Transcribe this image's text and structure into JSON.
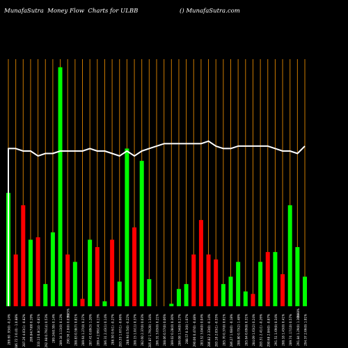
{
  "header": {
    "title_left": "MunafaSutra  Money Flow  Charts for ULBB",
    "title_right": "() MunafaSutra.com"
  },
  "colors": {
    "background": "#000000",
    "up_bar": "#00ff00",
    "down_bar": "#ff0000",
    "line": "#ffffff",
    "grid": "#cc7a00"
  },
  "chart_data": {
    "type": "bar",
    "bar_values": [
      46,
      21,
      41,
      27,
      28,
      9,
      30,
      97,
      21,
      18,
      3,
      27,
      24,
      2,
      27,
      10,
      64,
      32,
      59,
      11,
      0,
      0,
      1,
      7,
      9,
      21,
      35,
      21,
      19,
      9,
      12,
      18,
      6,
      5,
      18,
      22,
      22,
      13,
      41,
      24,
      12
    ],
    "bar_directions": [
      "up",
      "down",
      "down",
      "up",
      "down",
      "up",
      "up",
      "up",
      "down",
      "up",
      "down",
      "up",
      "down",
      "up",
      "down",
      "up",
      "up",
      "down",
      "up",
      "up",
      "up",
      "down",
      "up",
      "up",
      "up",
      "down",
      "down",
      "down",
      "down",
      "up",
      "up",
      "up",
      "up",
      "down",
      "up",
      "down",
      "up",
      "down",
      "up",
      "up",
      "up"
    ],
    "line_values": [
      64,
      64,
      63,
      63,
      61,
      62,
      62,
      63,
      63,
      63,
      63,
      64,
      63,
      63,
      62,
      61,
      63,
      61,
      63,
      64,
      65,
      66,
      66,
      66,
      66,
      66,
      66,
      67,
      65,
      64,
      64,
      65,
      65,
      65,
      65,
      65,
      64,
      63,
      63,
      62,
      65
    ],
    "ylim": [
      0,
      100
    ],
    "x_labels": [
      "289.60 .93(0) -0.24%",
      "286.72 3 0.(0) -1.0.88%",
      "287.26 4.03(1) -0.82%",
      "289.84(7)80 0.19%",
      "333.13 0.8(14) -0.81%",
      "292.98 0.79(14) 0.53%",
      "289.24(0.59) 0.14%",
      "289.34 3.13(0) 0.13%",
      "290.56 2.0(0) 0.03%",
      "288.83 0.58(7) 0.81%",
      "289.64 1.27(0) 0.27%",
      "287.41 0.89(3) 1.20%",
      "289.4 2.99(14) 0.13%",
      "286.31 2.43(1) 0.14%",
      "288.50 0.6(1) -0.27%",
      "283.33 1.67(1) -0.66%",
      "288.94 0.5(0) -0.22%",
      "288.15 1.0(11) 0.37%",
      "282.60 2.37(0) 0.03%",
      "285.87 1.79(20) 1.34%",
      "286.31 3.03(0) 0.21%",
      "288.06 0.57(0) 0.06%",
      "289.02 0.28(0) 0.30%",
      "286.08 1.54(0) 0.17%",
      "288.57 0.3(0) 1.07%",
      "290.00 0.47(0) -0.48%",
      "283.52 3.04(0) 0.04%",
      "286.82 2.33(0) -0.14%",
      "283.10 2.03(1) -0.55%",
      "285.70 0.37(0) 0.61%",
      "286.27 1.68(0) -0.18%",
      "288.80 0.73(2) 1.48%",
      "285.64 0.69(8) 0.31%",
      "284.09 1.63(2) 0.24%",
      "283.31 2.41(1) -0.26%",
      "290.68 2.84(0) -0.87%",
      "291.51 1.69(0) 0.34%",
      "288.18 1.43(0) 0.41%",
      "289.74 .17(10) 0.57%",
      "291.84 1.29(0) 1.30%",
      "294.37 2.66(0) 1.01%"
    ],
    "x_sublabels": {
      "8": "0.05%",
      "39": "0.98%"
    },
    "grid": true
  }
}
